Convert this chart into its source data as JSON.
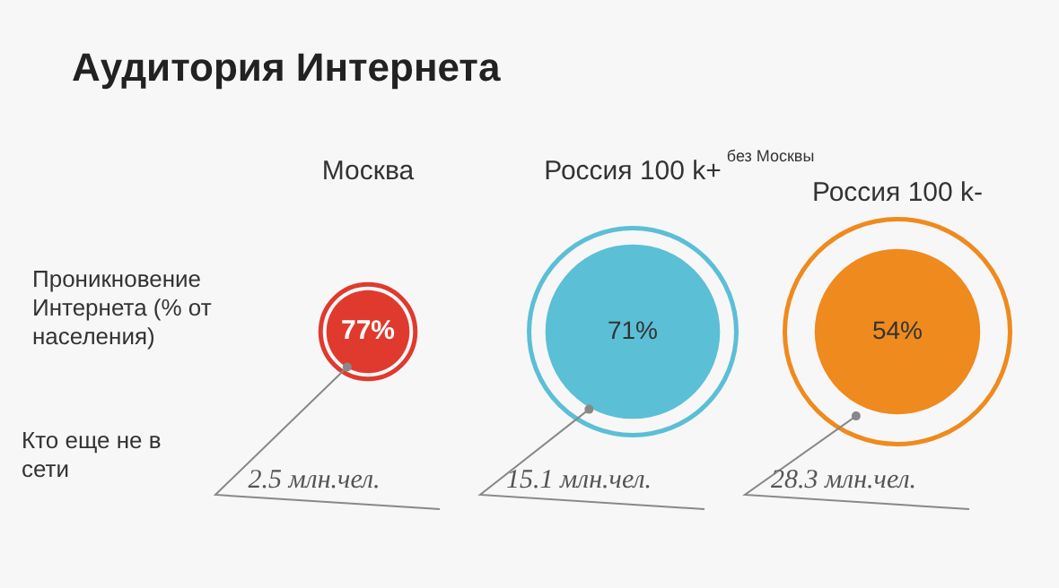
{
  "chart_data": {
    "type": "other",
    "title": "Аудитория Интернета",
    "categories": [
      "Москва",
      "Россия 100 k+",
      "Россия 100 k-"
    ],
    "series": [
      {
        "name": "Проникновение Интернета (% от населения)",
        "colors": [
          "#e03a2e",
          "#5bbfd6",
          "#ef8a1e"
        ],
        "values": [
          77,
          71,
          54
        ],
        "value_labels": [
          "77%",
          "71%",
          "54%"
        ]
      },
      {
        "name": "Кто еще не в сети",
        "color": "#555555",
        "values": [
          2.5,
          15.1,
          28.3
        ],
        "value_labels": [
          "2.5 млн.чел.",
          "15.1 млн.чел.",
          "28.3 млн.чел."
        ]
      }
    ],
    "annotations": [
      {
        "text": "без Москвы",
        "x": "Россия 100 k+"
      }
    ]
  }
}
